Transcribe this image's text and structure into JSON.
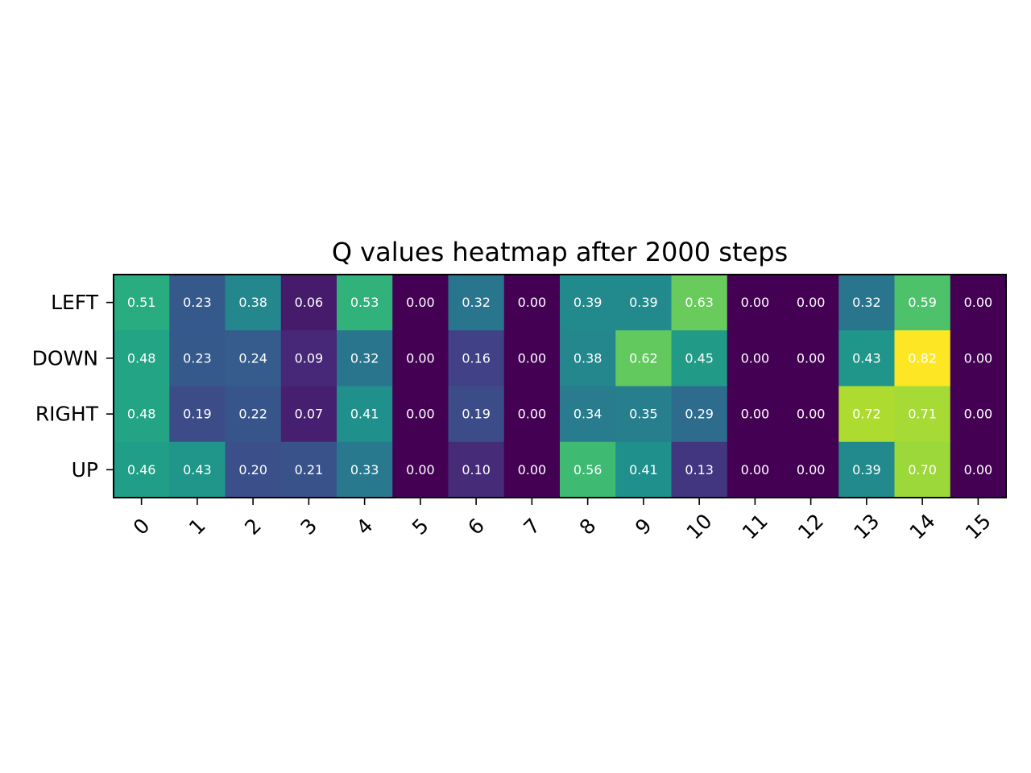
{
  "chart_data": {
    "type": "heatmap",
    "title": "Q values heatmap after 2000 steps",
    "xlabel": "",
    "ylabel": "",
    "x_tick_labels": [
      "0",
      "1",
      "2",
      "3",
      "4",
      "5",
      "6",
      "7",
      "8",
      "9",
      "10",
      "11",
      "12",
      "13",
      "14",
      "15"
    ],
    "y_tick_labels": [
      "LEFT",
      "DOWN",
      "RIGHT",
      "UP"
    ],
    "colormap": "viridis",
    "value_range": [
      0.0,
      0.82
    ],
    "values": [
      [
        0.51,
        0.23,
        0.38,
        0.06,
        0.53,
        0.0,
        0.32,
        0.0,
        0.39,
        0.39,
        0.63,
        0.0,
        0.0,
        0.32,
        0.59,
        0.0
      ],
      [
        0.48,
        0.23,
        0.24,
        0.09,
        0.32,
        0.0,
        0.16,
        0.0,
        0.38,
        0.62,
        0.45,
        0.0,
        0.0,
        0.43,
        0.82,
        0.0
      ],
      [
        0.48,
        0.19,
        0.22,
        0.07,
        0.41,
        0.0,
        0.19,
        0.0,
        0.34,
        0.35,
        0.29,
        0.0,
        0.0,
        0.72,
        0.71,
        0.0
      ],
      [
        0.46,
        0.43,
        0.2,
        0.21,
        0.33,
        0.0,
        0.1,
        0.0,
        0.56,
        0.41,
        0.13,
        0.0,
        0.0,
        0.39,
        0.7,
        0.0
      ]
    ],
    "value_format": "2 decimals",
    "annotation_color": "#ffffff",
    "grid": false
  }
}
